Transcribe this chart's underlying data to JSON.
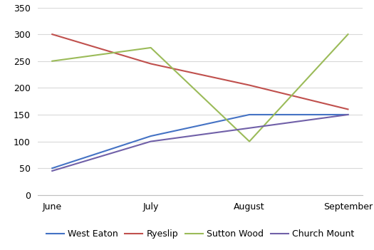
{
  "months": [
    "June",
    "July",
    "August",
    "September"
  ],
  "series": {
    "West Eaton": {
      "values": [
        50,
        110,
        150,
        150
      ],
      "color": "#4472C4"
    },
    "Ryeslip": {
      "values": [
        300,
        245,
        205,
        160
      ],
      "color": "#C0504D"
    },
    "Sutton Wood": {
      "values": [
        250,
        275,
        100,
        300
      ],
      "color": "#9BBB59"
    },
    "Church Mount": {
      "values": [
        45,
        100,
        125,
        150
      ],
      "color": "#7060A8"
    }
  },
  "ylim": [
    0,
    350
  ],
  "yticks": [
    0,
    50,
    100,
    150,
    200,
    250,
    300,
    350
  ],
  "grid_color": "#D9D9D9",
  "background_color": "#FFFFFF",
  "legend_order": [
    "West Eaton",
    "Ryeslip",
    "Sutton Wood",
    "Church Mount"
  ],
  "line_width": 1.5,
  "tick_fontsize": 9,
  "legend_fontsize": 9
}
